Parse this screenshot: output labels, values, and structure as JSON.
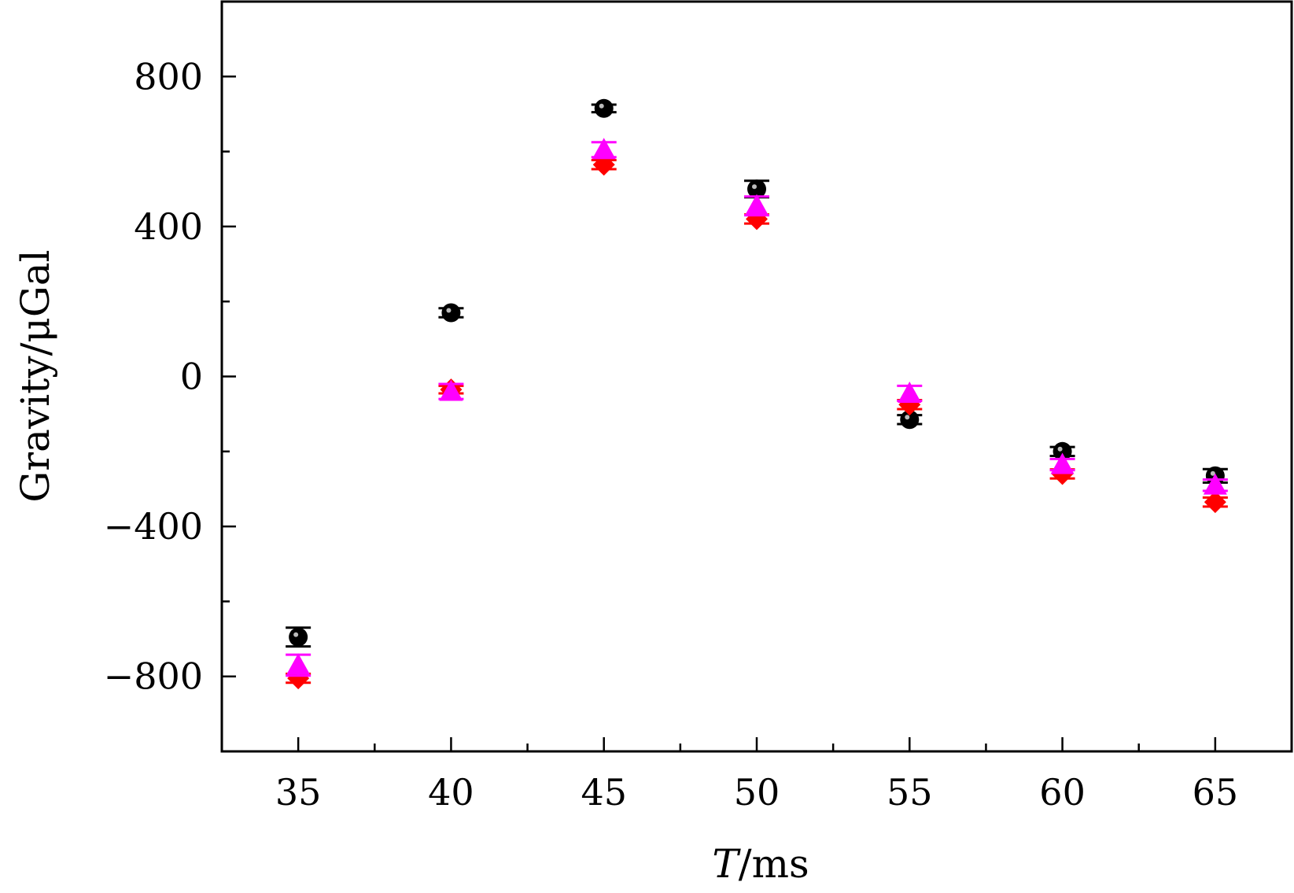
{
  "chart_data": {
    "type": "scatter",
    "xlabel_italic": "T",
    "xlabel_rest": "/ms",
    "ylabel": "Gravity/μGal",
    "xlim": [
      32.5,
      67.5
    ],
    "ylim": [
      -1000,
      1000
    ],
    "x_ticks": [
      35,
      40,
      45,
      50,
      55,
      60,
      65
    ],
    "x_tick_labels": [
      "35",
      "40",
      "45",
      "50",
      "55",
      "60",
      "65"
    ],
    "y_ticks": [
      -800,
      -400,
      0,
      400,
      800
    ],
    "y_tick_labels": [
      "−800",
      "−400",
      "0",
      "400",
      "800"
    ],
    "legend": "none",
    "grid": false,
    "x": [
      35,
      40,
      45,
      50,
      55,
      60,
      65
    ],
    "series": [
      {
        "marker": "circle",
        "color": "#000000",
        "values": [
          -695,
          170,
          715,
          500,
          -115,
          -200,
          -265
        ],
        "errors": [
          25,
          12,
          10,
          22,
          12,
          12,
          18
        ]
      },
      {
        "marker": "diamond",
        "color": "#ff0000",
        "values": [
          -805,
          -35,
          565,
          420,
          -75,
          -260,
          -335
        ],
        "errors": [
          12,
          10,
          12,
          12,
          12,
          12,
          12
        ]
      },
      {
        "marker": "triangle",
        "color": "#ff00ff",
        "values": [
          -770,
          -40,
          605,
          455,
          -45,
          -235,
          -290
        ],
        "errors": [
          28,
          20,
          20,
          25,
          20,
          15,
          15
        ]
      }
    ]
  }
}
